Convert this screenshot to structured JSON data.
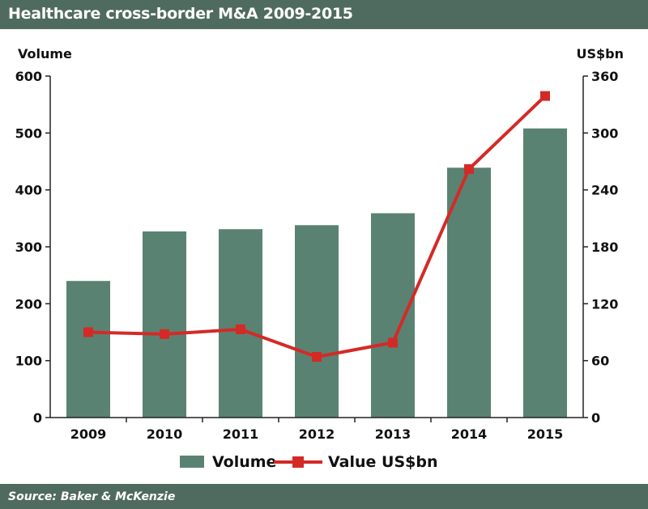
{
  "header": {
    "title": "Healthcare cross-border M&A 2009-2015"
  },
  "footer": {
    "source": "Source: Baker & McKenzie"
  },
  "colors": {
    "bar": "#5a8272",
    "line": "#d42a26",
    "band": "#4f6b5f"
  },
  "chart_data": {
    "type": "bar",
    "title": "Healthcare cross-border M&A 2009-2015",
    "categories": [
      "2009",
      "2010",
      "2011",
      "2012",
      "2013",
      "2014",
      "2015"
    ],
    "series": [
      {
        "name": "Volume",
        "type": "bar",
        "axis": "left",
        "values": [
          240,
          327,
          331,
          338,
          359,
          439,
          508
        ]
      },
      {
        "name": "Value US$bn",
        "type": "line",
        "axis": "right",
        "values": [
          90,
          88,
          93,
          64,
          79,
          262,
          339
        ]
      }
    ],
    "ylabel_left": "Volume",
    "ylabel_right": "US$bn",
    "ylim_left": [
      0,
      600
    ],
    "ylim_right": [
      0,
      360
    ],
    "yticks_left": [
      "0",
      "100",
      "200",
      "300",
      "400",
      "500",
      "600"
    ],
    "yticks_right": [
      "0",
      "60",
      "120",
      "180",
      "240",
      "300",
      "360"
    ],
    "grid": false,
    "legend": {
      "position": "bottom",
      "items": [
        "Volume",
        "Value US$bn"
      ]
    }
  }
}
